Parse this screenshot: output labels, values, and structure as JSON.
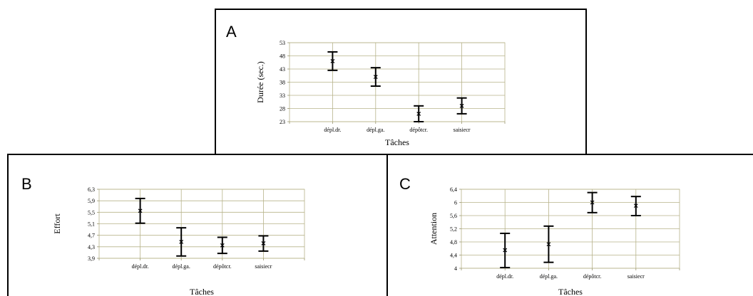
{
  "chart_data": [
    {
      "type": "scatter",
      "panel_label": "A",
      "xlabel": "Tâches",
      "ylabel": "Durée (sec.)",
      "categories": [
        "dépl.dr.",
        "dépl.ga.",
        "dépôtcr.",
        "saisiecr"
      ],
      "yticks": [
        "23",
        "28",
        "33",
        "38",
        "43",
        "48",
        "53"
      ],
      "ylim": [
        23,
        53
      ],
      "grid": true,
      "series": [
        {
          "means": [
            46,
            40,
            26,
            29
          ],
          "lower": [
            42.5,
            36.5,
            23,
            26
          ],
          "upper": [
            49.5,
            43.5,
            29,
            32
          ]
        }
      ]
    },
    {
      "type": "scatter",
      "panel_label": "B",
      "xlabel": "Tâches",
      "ylabel": "Effort",
      "categories": [
        "dépl.dr.",
        "dépl.ga.",
        "dépôtcr.",
        "saisiecr"
      ],
      "yticks": [
        "3,9",
        "4,3",
        "4,7",
        "5,1",
        "5,5",
        "5,9",
        "6,3"
      ],
      "ylim": [
        3.9,
        6.3
      ],
      "grid": true,
      "series": [
        {
          "means": [
            5.55,
            4.47,
            4.35,
            4.42
          ],
          "lower": [
            5.12,
            3.98,
            4.07,
            4.15
          ],
          "upper": [
            5.98,
            4.96,
            4.63,
            4.68
          ]
        }
      ]
    },
    {
      "type": "scatter",
      "panel_label": "C",
      "xlabel": "Tâches",
      "ylabel": "Attention",
      "categories": [
        "dépl.dr.",
        "dépl.ga.",
        "dépôtcr.",
        "saisiecr"
      ],
      "yticks": [
        "4",
        "4,4",
        "4,8",
        "5,2",
        "5,6",
        "6",
        "6,4"
      ],
      "ylim": [
        4,
        6.4
      ],
      "grid": true,
      "series": [
        {
          "means": [
            4.55,
            4.73,
            6.0,
            5.9
          ],
          "lower": [
            4.02,
            4.18,
            5.69,
            5.6
          ],
          "upper": [
            5.06,
            5.28,
            6.3,
            6.18
          ]
        }
      ]
    }
  ]
}
